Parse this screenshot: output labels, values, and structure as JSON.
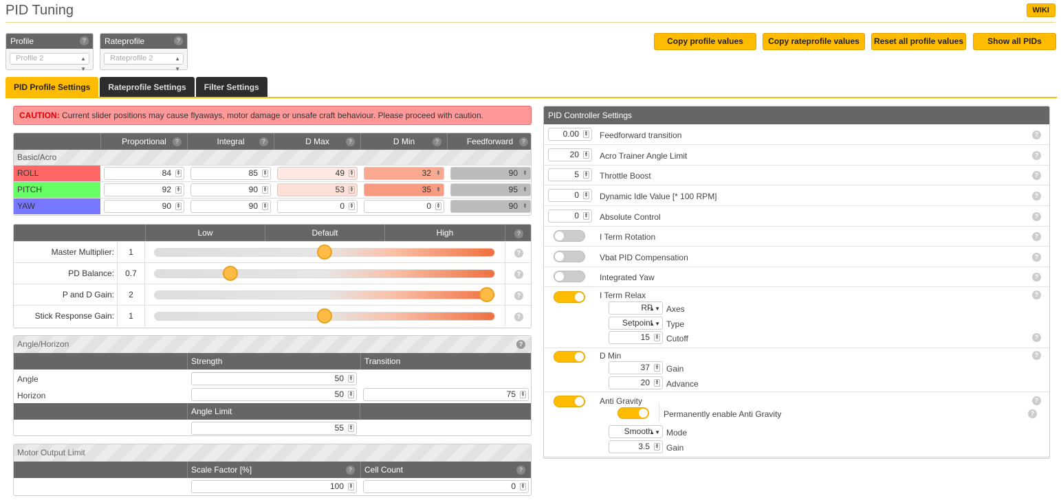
{
  "header": {
    "title": "PID Tuning",
    "wiki": "WIKI"
  },
  "profile": {
    "label": "Profile",
    "value": "Profile 2"
  },
  "rateprofile": {
    "label": "Rateprofile",
    "value": "Rateprofile 2"
  },
  "buttons": {
    "copy_profile": "Copy profile values",
    "copy_rateprofile": "Copy rateprofile values",
    "reset_all": "Reset all profile values",
    "show_all": "Show all PIDs"
  },
  "tabs": [
    "PID Profile Settings",
    "Rateprofile Settings",
    "Filter Settings"
  ],
  "caution": {
    "prefix": "CAUTION:",
    "text": " Current slider positions may cause flyaways, motor damage or unsafe craft behaviour. Please proceed with caution."
  },
  "pid_table": {
    "headers": [
      "Proportional",
      "Integral",
      "D Max",
      "D Min",
      "Feedforward"
    ],
    "section": "Basic/Acro",
    "rows": [
      {
        "name": "ROLL",
        "values": [
          "84",
          "85",
          "49",
          "32",
          "90"
        ]
      },
      {
        "name": "PITCH",
        "values": [
          "92",
          "90",
          "53",
          "35",
          "95"
        ]
      },
      {
        "name": "YAW",
        "values": [
          "90",
          "90",
          "0",
          "0",
          "90"
        ]
      }
    ]
  },
  "sliders": {
    "headers": [
      "Low",
      "Default",
      "High"
    ],
    "rows": [
      {
        "label": "Master Multiplier:",
        "value": "1",
        "level": 0.5
      },
      {
        "label": "PD Balance:",
        "value": "0.7",
        "level": 0.21
      },
      {
        "label": "P and D Gain:",
        "value": "2",
        "level": 1.0
      },
      {
        "label": "Stick Response Gain:",
        "value": "1",
        "level": 0.5
      }
    ]
  },
  "angle_horizon": {
    "title": "Angle/Horizon",
    "strength": "Strength",
    "transition": "Transition",
    "angle_label": "Angle",
    "horizon_label": "Horizon",
    "angle_strength": "50",
    "horizon_strength": "50",
    "horizon_transition": "75",
    "angle_limit_label": "Angle Limit",
    "angle_limit": "55"
  },
  "motor_output": {
    "title": "Motor Output Limit",
    "scale_label": "Scale Factor [%]",
    "cell_label": "Cell Count",
    "scale": "100",
    "cells": "0"
  },
  "pid_controller": {
    "title": "PID Controller Settings",
    "feedforward_transition": {
      "value": "0.00",
      "label": "Feedforward transition"
    },
    "acro_trainer": {
      "value": "20",
      "label": "Acro Trainer Angle Limit"
    },
    "throttle_boost": {
      "value": "5",
      "label": "Throttle Boost"
    },
    "dynamic_idle": {
      "value": "0",
      "label": "Dynamic Idle Value [* 100 RPM]"
    },
    "absolute_control": {
      "value": "0",
      "label": "Absolute Control"
    },
    "iterm_rotation": {
      "label": "I Term Rotation"
    },
    "vbat_comp": {
      "label": "Vbat PID Compensation"
    },
    "integrated_yaw": {
      "label": "Integrated Yaw"
    },
    "iterm_relax": {
      "label": "I Term Relax",
      "axes": "RP",
      "axes_label": "Axes",
      "type": "Setpoint",
      "type_label": "Type",
      "cutoff": "15",
      "cutoff_label": "Cutoff"
    },
    "dmin": {
      "label": "D Min",
      "gain": "37",
      "gain_label": "Gain",
      "advance": "20",
      "advance_label": "Advance"
    },
    "anti_gravity": {
      "label": "Anti Gravity",
      "perm_label": "Permanently enable Anti Gravity",
      "mode": "Smooth",
      "mode_label": "Mode",
      "gain": "3.5",
      "gain_label": "Gain"
    }
  },
  "colors": {
    "accent": "#ffbb00",
    "roll": "#f66",
    "pitch": "#6f6",
    "yaw": "#77f"
  }
}
